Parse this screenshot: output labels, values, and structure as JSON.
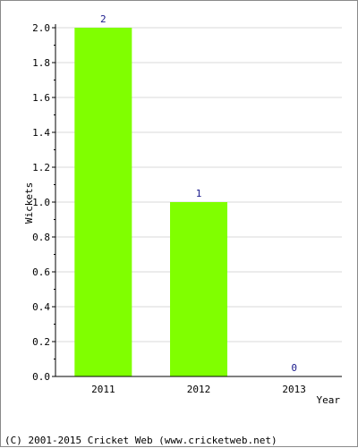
{
  "chart_data": {
    "type": "bar",
    "categories": [
      "2011",
      "2012",
      "2013"
    ],
    "values": [
      2,
      1,
      0
    ],
    "value_labels": [
      "2",
      "1",
      "0"
    ],
    "xlabel": "Year",
    "ylabel": "Wickets",
    "ylim": [
      0,
      2.0
    ],
    "yticks": [
      "0.0",
      "0.2",
      "0.4",
      "0.6",
      "0.8",
      "1.0",
      "1.2",
      "1.4",
      "1.6",
      "1.8",
      "2.0"
    ],
    "grid": true,
    "legend": "none"
  },
  "colors": {
    "bar": "#80ff00",
    "value_label": "#1a1a8c",
    "grid": "#d9d9d9",
    "axis": "#000000"
  },
  "footer": "(C) 2001-2015 Cricket Web (www.cricketweb.net)"
}
